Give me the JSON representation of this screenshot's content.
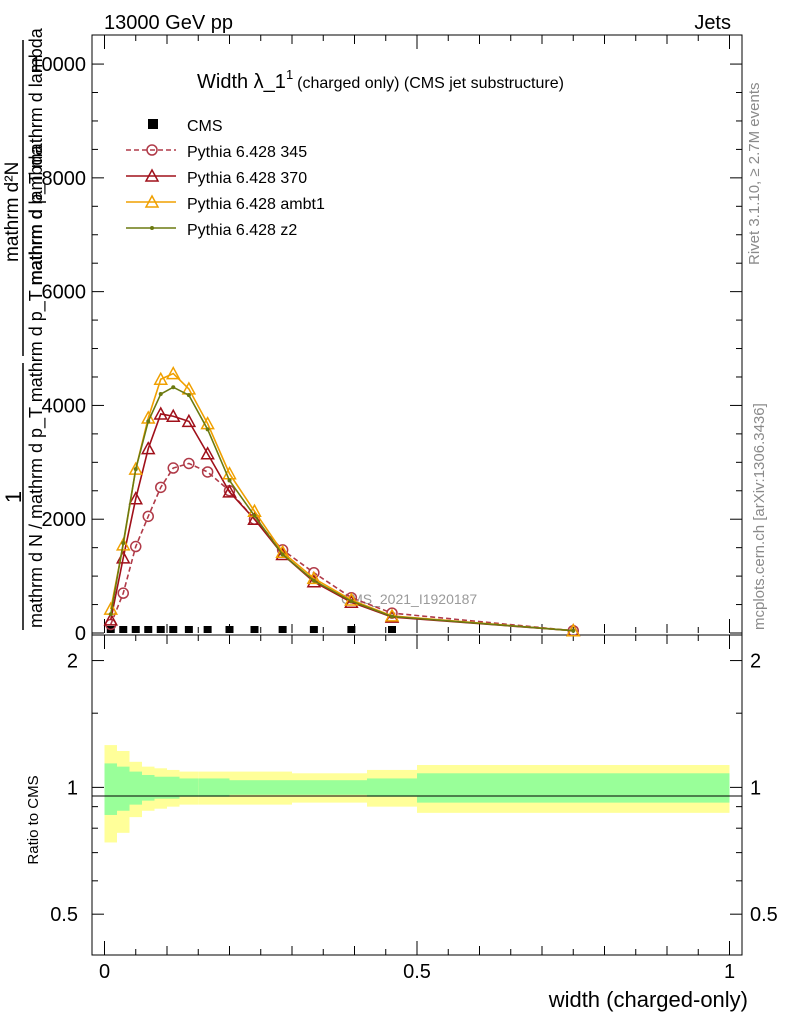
{
  "header": {
    "left": "13000 GeV pp",
    "right": "Jets"
  },
  "side_labels": {
    "rivet": "Rivet 3.1.10, ≥ 2.7M events",
    "mcplots": "mcplots.cern.ch [arXiv:1306.3436]"
  },
  "main_panel": {
    "title_main": "Width λ_1",
    "title_sup": "1",
    "title_sub": "(charged only) (CMS jet substructure)",
    "watermark": "CMS_2021_I1920187",
    "ylabel_frac_top": "1",
    "ylabel_frac_bottom": "mathrm d N / mathrm d p_T mathrm d p_T mathrm d lambda",
    "ylabel_num": "mathrm d²N",
    "ylabel_denom": "mathrm d p_T mathrm d lambda",
    "yticks": [
      "0",
      "2000",
      "4000",
      "6000",
      "8000",
      "10000"
    ]
  },
  "ratio_panel": {
    "ylabel": "Ratio to CMS",
    "yticks_left": [
      "0.5",
      "1",
      "2"
    ],
    "yticks_right": [
      "0.5",
      "1",
      "2"
    ]
  },
  "xaxis": {
    "label": "width (charged-only)",
    "ticks": [
      "0",
      "0.5",
      "1"
    ]
  },
  "legend": [
    {
      "name": "CMS",
      "color": "#000000",
      "marker": "square",
      "dash": false
    },
    {
      "name": "Pythia 6.428 345",
      "color": "#b03a48",
      "marker": "circle-open",
      "dash": true
    },
    {
      "name": "Pythia 6.428 370",
      "color": "#a0101a",
      "marker": "triangle-open",
      "dash": false
    },
    {
      "name": "Pythia 6.428 ambt1",
      "color": "#f0a000",
      "marker": "triangle-open",
      "dash": false
    },
    {
      "name": "Pythia 6.428 z2",
      "color": "#6b7a10",
      "marker": "dot",
      "dash": false
    }
  ],
  "chart_data": {
    "type": "line",
    "title": "Width λ_1^1 (charged only) (CMS jet substructure)",
    "xlabel": "width (charged-only)",
    "ylabel": "1/(mathrm d N / mathrm d p_T) mathrm d²N / (mathrm d p_T mathrm d lambda)",
    "xlim": [
      -0.02,
      1.02
    ],
    "ylim": [
      0,
      10300
    ],
    "ratio_ylim": [
      0.4,
      2.3
    ],
    "ratio_ylabel": "Ratio to CMS",
    "legend_position": "top-left",
    "cms_band_edges": [
      0,
      0.02,
      0.04,
      0.06,
      0.08,
      0.1,
      0.12,
      0.15,
      0.2,
      0.3,
      0.42,
      0.5,
      1.0
    ],
    "cms_band_inner": [
      0.14,
      0.12,
      0.09,
      0.07,
      0.06,
      0.06,
      0.05,
      0.05,
      0.04,
      0.04,
      0.05,
      0.08,
      0.08
    ],
    "cms_band_outer": [
      0.26,
      0.22,
      0.15,
      0.12,
      0.11,
      0.1,
      0.09,
      0.09,
      0.09,
      0.08,
      0.1,
      0.13,
      0.13
    ],
    "series": [
      {
        "name": "CMS",
        "x": [
          0.01,
          0.03,
          0.05,
          0.07,
          0.09,
          0.11,
          0.135,
          0.165,
          0.2,
          0.24,
          0.285,
          0.335,
          0.395,
          0.46
        ],
        "y": [
          0,
          0,
          0,
          0,
          0,
          0,
          0,
          0,
          0,
          0,
          0,
          0,
          0,
          0
        ]
      },
      {
        "name": "Pythia 6.428 345",
        "x": [
          0.01,
          0.03,
          0.05,
          0.07,
          0.09,
          0.11,
          0.135,
          0.165,
          0.2,
          0.24,
          0.285,
          0.335,
          0.395,
          0.46,
          0.75
        ],
        "y": [
          150,
          700,
          1520,
          2050,
          2560,
          2900,
          2980,
          2830,
          2500,
          2000,
          1460,
          1060,
          620,
          350,
          40
        ]
      },
      {
        "name": "Pythia 6.428 370",
        "x": [
          0.01,
          0.03,
          0.05,
          0.07,
          0.09,
          0.11,
          0.135,
          0.165,
          0.2,
          0.24,
          0.285,
          0.335,
          0.395,
          0.46,
          0.75
        ],
        "y": [
          230,
          1320,
          2360,
          3240,
          3850,
          3810,
          3720,
          3150,
          2480,
          2000,
          1380,
          900,
          540,
          280,
          40
        ]
      },
      {
        "name": "Pythia 6.428 ambt1",
        "x": [
          0.01,
          0.03,
          0.05,
          0.07,
          0.09,
          0.11,
          0.135,
          0.165,
          0.2,
          0.24,
          0.285,
          0.335,
          0.395,
          0.46,
          0.75
        ],
        "y": [
          420,
          1550,
          2880,
          3780,
          4460,
          4560,
          4290,
          3680,
          2800,
          2140,
          1420,
          960,
          580,
          300,
          40
        ]
      },
      {
        "name": "Pythia 6.428 z2",
        "x": [
          0.01,
          0.03,
          0.05,
          0.07,
          0.09,
          0.11,
          0.135,
          0.165,
          0.2,
          0.24,
          0.285,
          0.335,
          0.395,
          0.46,
          0.75
        ],
        "y": [
          330,
          1580,
          2880,
          3720,
          4200,
          4320,
          4180,
          3580,
          2680,
          2060,
          1380,
          920,
          560,
          290,
          40
        ]
      }
    ]
  }
}
